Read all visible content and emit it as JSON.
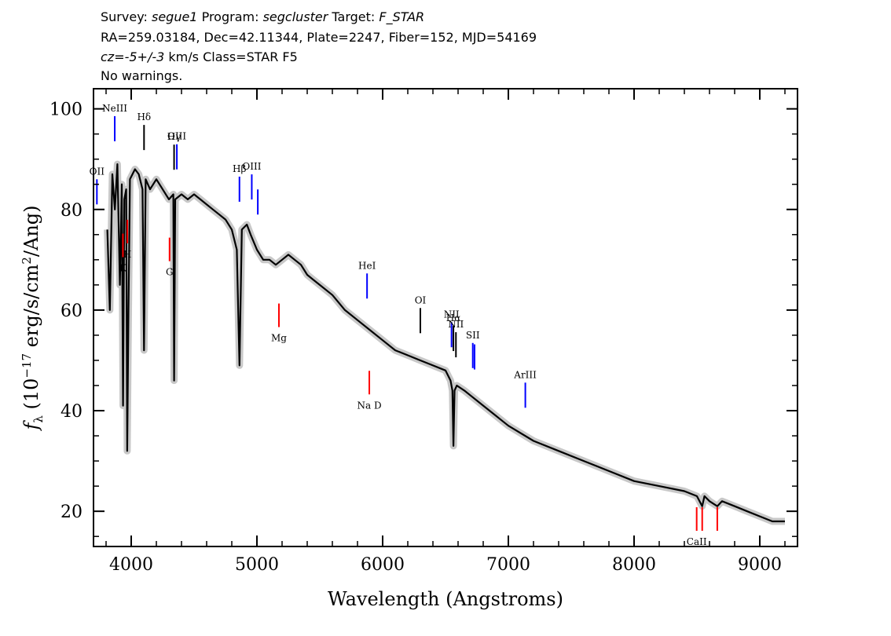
{
  "header": {
    "line1": {
      "survey_label": "Survey:",
      "survey_value": "segue1",
      "program_label": "Program:",
      "program_value": "segcluster",
      "target_label": "Target:",
      "target_value": "F_STAR"
    },
    "line2": "RA=259.03184, Dec=42.11344, Plate=2247, Fiber=152, MJD=54169",
    "line3": {
      "cz": "cz=-5+/-3",
      "rest": "km/s Class=STAR F5"
    },
    "line4": "No warnings."
  },
  "chart_data": {
    "type": "line",
    "xlabel": "Wavelength (Angstroms)",
    "ylabel": "f_λ (10^-17 erg/s/cm^2/Ang)",
    "ylabel_parts": {
      "f": "f",
      "sub": "λ",
      "a": "(10",
      "exp1": "−17",
      "b": " erg/s/cm",
      "exp2": "2",
      "c": "/Ang)"
    },
    "xlim": [
      3700,
      9300
    ],
    "ylim": [
      13,
      104
    ],
    "x_ticks": [
      4000,
      5000,
      6000,
      7000,
      8000,
      9000
    ],
    "x_tick_labels": [
      "4000",
      "5000",
      "6000",
      "7000",
      "8000",
      "9000"
    ],
    "y_ticks": [
      20,
      40,
      60,
      80,
      100
    ],
    "y_tick_labels": [
      "20",
      "40",
      "60",
      "80",
      "100"
    ],
    "colors": {
      "spectrum": "#000000",
      "error_band": "#c8c8c8",
      "emission": "#0000ff",
      "absorption": "#ff0000",
      "neutral": "#000000"
    },
    "series": [
      {
        "x": [
          3810,
          3830,
          3850,
          3870,
          3890,
          3910,
          3925,
          3935,
          3945,
          3960,
          3968,
          3978,
          3990,
          4010,
          4030,
          4060,
          4090,
          4102,
          4115,
          4150,
          4200,
          4250,
          4300,
          4335,
          4341,
          4350,
          4400,
          4450,
          4500,
          4550,
          4600,
          4650,
          4700,
          4750,
          4800,
          4840,
          4861,
          4880,
          4920,
          4950,
          5000,
          5050,
          5100,
          5150,
          5200,
          5250,
          5300,
          5350,
          5400,
          5450,
          5500,
          5600,
          5700,
          5800,
          5900,
          6000,
          6100,
          6200,
          6300,
          6400,
          6500,
          6540,
          6555,
          6563,
          6572,
          6590,
          6650,
          6700,
          6800,
          6900,
          7000,
          7200,
          7400,
          7600,
          7800,
          8000,
          8200,
          8400,
          8500,
          8542,
          8560,
          8600,
          8662,
          8700,
          8800,
          8900,
          9000,
          9100,
          9200
        ],
        "y": [
          76,
          60,
          87,
          80,
          89,
          65,
          85,
          41,
          82,
          84,
          32,
          60,
          86,
          87,
          88,
          87,
          84,
          52,
          86,
          84,
          86,
          84,
          82,
          83,
          46,
          82,
          83,
          82,
          83,
          82,
          81,
          80,
          79,
          78,
          76,
          72,
          49,
          76,
          77,
          75,
          72,
          70,
          70,
          69,
          70,
          71,
          70,
          69,
          67,
          66,
          65,
          63,
          60,
          58,
          56,
          54,
          52,
          51,
          50,
          49,
          48,
          46,
          44,
          33,
          44,
          45,
          44,
          43,
          41,
          39,
          37,
          34,
          32,
          30,
          28,
          26,
          25,
          24,
          23,
          21,
          23,
          22,
          21,
          22,
          21,
          20,
          19,
          18,
          18
        ]
      }
    ],
    "spectral_lines": [
      {
        "label": "OII",
        "wavelength": 3727,
        "color": "blue",
        "position": "above"
      },
      {
        "label": "NeIII",
        "wavelength": 3869,
        "color": "blue",
        "position": "above"
      },
      {
        "label": "Hδ",
        "wavelength": 4102,
        "color": "black",
        "position": "above"
      },
      {
        "label": "Hγ",
        "wavelength": 4341,
        "color": "black",
        "position": "above"
      },
      {
        "label": "OIII",
        "wavelength": 4363,
        "color": "blue",
        "position": "above"
      },
      {
        "label": "Hβ",
        "wavelength": 4861,
        "color": "blue",
        "position": "above"
      },
      {
        "label": "OIII",
        "wavelength": 4959,
        "color": "blue",
        "position": "above"
      },
      {
        "label": "",
        "wavelength": 5007,
        "color": "blue",
        "position": "above"
      },
      {
        "label": "HeI",
        "wavelength": 5876,
        "color": "blue",
        "position": "above"
      },
      {
        "label": "OI",
        "wavelength": 6300,
        "color": "black",
        "position": "above"
      },
      {
        "label": "NII",
        "wavelength": 6548,
        "color": "blue",
        "position": "above"
      },
      {
        "label": "Hα",
        "wavelength": 6563,
        "color": "black",
        "position": "above"
      },
      {
        "label": "NII",
        "wavelength": 6583,
        "color": "black",
        "position": "above"
      },
      {
        "label": "SII",
        "wavelength": 6717,
        "color": "blue",
        "position": "above"
      },
      {
        "label": "",
        "wavelength": 6731,
        "color": "blue",
        "position": "above"
      },
      {
        "label": "ArIII",
        "wavelength": 7135,
        "color": "blue",
        "position": "above"
      },
      {
        "label": "K",
        "wavelength": 3934,
        "color": "red",
        "position": "below"
      },
      {
        "label": "H",
        "wavelength": 3969,
        "color": "red",
        "position": "below"
      },
      {
        "label": "G",
        "wavelength": 4305,
        "color": "red",
        "position": "below"
      },
      {
        "label": "Mg",
        "wavelength": 5175,
        "color": "red",
        "position": "below"
      },
      {
        "label": "Na D",
        "wavelength": 5894,
        "color": "red",
        "position": "below"
      },
      {
        "label": "CaII",
        "wavelength": 8498,
        "color": "red",
        "position": "below"
      },
      {
        "label": "",
        "wavelength": 8542,
        "color": "red",
        "position": "below"
      },
      {
        "label": "",
        "wavelength": 8662,
        "color": "red",
        "position": "below"
      }
    ]
  }
}
